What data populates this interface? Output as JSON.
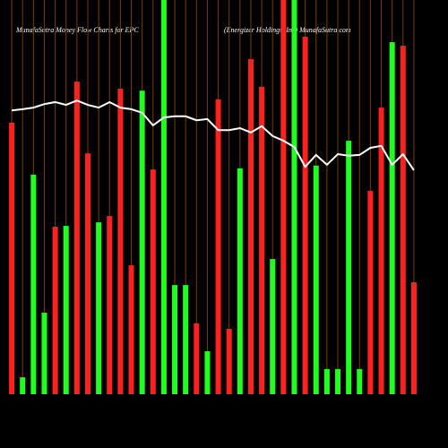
{
  "chart_data": {
    "type": "bar",
    "title": "MunafaSutra  Money Flow  Charts for EPC",
    "subtitle": "(Energizer Holdings, Inc)  MunafaSutra.com",
    "categories": [
      null,
      null,
      null,
      null,
      null,
      null,
      null,
      null,
      null,
      null,
      null,
      null,
      null,
      null,
      null,
      null,
      null,
      null,
      null,
      null,
      null,
      null,
      null,
      null,
      null,
      null,
      null,
      null,
      null,
      null,
      null,
      null,
      null,
      null,
      null,
      null,
      null,
      null
    ],
    "ylim": [
      0,
      100
    ],
    "grid_color": "#7a3d00",
    "series": [
      {
        "name": "Money Flow",
        "type": "bar",
        "values": [
          68.9,
          4.3,
          55.7,
          20.7,
          42.5,
          42.7,
          79.3,
          61.1,
          43.6,
          45.2,
          77.5,
          32.7,
          77.0,
          57.0,
          100,
          27.7,
          27.7,
          18.0,
          10.9,
          74.8,
          16.6,
          57.3,
          85.0,
          78.0,
          34.3,
          100,
          100,
          90.7,
          58.0,
          6.4,
          6.4,
          64.3,
          6.4,
          51.6,
          72.7,
          89.3,
          88.4,
          28.4
        ],
        "colors": [
          "#ff2020",
          "#20ff20",
          "#20ff20",
          "#20ff20",
          "#ff2020",
          "#20ff20",
          "#ff2020",
          "#ff2020",
          "#20ff20",
          "#ff2020",
          "#ff2020",
          "#ff2020",
          "#20ff20",
          "#ff2020",
          "#20ff20",
          "#20ff20",
          "#20ff20",
          "#ff2020",
          "#20ff20",
          "#ff2020",
          "#ff2020",
          "#20ff20",
          "#ff2020",
          "#ff2020",
          "#20ff20",
          "#ff2020",
          "#20ff20",
          "#ff2020",
          "#20ff20",
          "#20ff20",
          "#20ff20",
          "#20ff20",
          "#20ff20",
          "#ff2020",
          "#ff2020",
          "#20ff20",
          "#ff2020",
          "#ff2020"
        ]
      },
      {
        "name": "Price",
        "type": "line",
        "color": "#ffffff",
        "values": [
          72.0,
          72.3,
          72.7,
          73.6,
          74.1,
          73.4,
          74.5,
          73.4,
          72.7,
          74.1,
          72.7,
          72.3,
          71.4,
          68.2,
          70.2,
          70.5,
          70.5,
          69.5,
          69.8,
          67.0,
          67.0,
          67.5,
          66.4,
          68.0,
          65.5,
          64.3,
          62.7,
          57.7,
          60.7,
          58.2,
          60.9,
          60.5,
          60.7,
          62.5,
          63.0,
          58.2,
          60.9,
          56.8
        ]
      }
    ]
  }
}
